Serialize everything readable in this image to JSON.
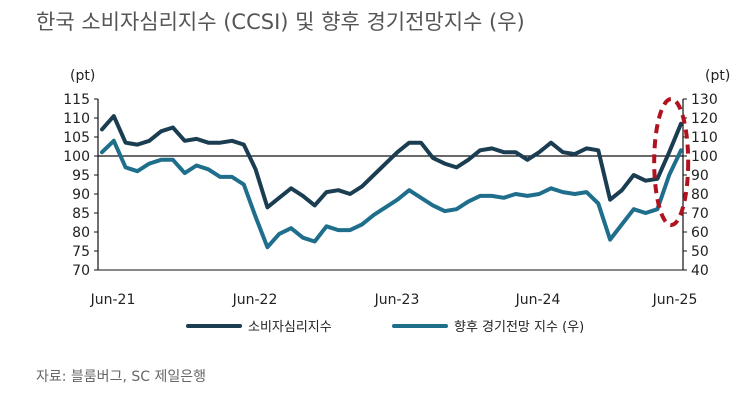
{
  "title": "한국 소비자심리지수 (CCSI) 및 향후 경기전망지수 (우)",
  "source": "자료: 블룸버그, SC 제일은행",
  "chart_data": {
    "type": "line",
    "x_tick_labels": [
      "Jun-21",
      "Jun-22",
      "Jun-23",
      "Jun-24",
      "Jun-25"
    ],
    "y_left": {
      "unit": "(pt)",
      "min": 70,
      "max": 115,
      "ticks": [
        70,
        75,
        80,
        85,
        90,
        95,
        100,
        105,
        110,
        115
      ]
    },
    "y_right": {
      "unit": "(pt)",
      "min": 40,
      "max": 130,
      "ticks": [
        40,
        50,
        60,
        70,
        80,
        90,
        100,
        110,
        120,
        130
      ]
    },
    "reference_line": 100,
    "series": [
      {
        "name": "소비자심리지수",
        "axis": "left",
        "color": "#1a3d52",
        "values": [
          107.0,
          110.5,
          103.5,
          103.0,
          104.0,
          106.5,
          107.5,
          104.0,
          104.5,
          103.5,
          103.5,
          104.0,
          103.0,
          96.5,
          86.5,
          89.0,
          91.5,
          89.5,
          87.0,
          90.5,
          91.0,
          90.0,
          92.0,
          95.0,
          98.0,
          101.0,
          103.5,
          103.5,
          99.5,
          98.0,
          97.0,
          99.0,
          101.5,
          102.0,
          101.0,
          101.0,
          99.0,
          101.0,
          103.5,
          101.0,
          100.5,
          102.0,
          101.5,
          88.5,
          91.0,
          95.0,
          93.5,
          94.0,
          101.0,
          108.5
        ]
      },
      {
        "name": "향후 경기전망 지수 (우)",
        "axis": "right",
        "color": "#1e6e8c",
        "values": [
          102,
          108,
          94,
          92,
          96,
          98,
          98,
          91,
          95,
          93,
          89,
          89,
          85,
          68,
          52,
          59,
          62,
          57,
          55,
          63,
          61,
          61,
          64,
          69,
          73,
          77,
          82,
          78,
          74,
          71,
          72,
          76,
          79,
          79,
          78,
          80,
          79,
          80,
          83,
          81,
          80,
          81,
          75,
          56,
          64,
          72,
          70,
          72,
          90,
          103
        ]
      }
    ],
    "highlight": {
      "shape": "dashed-ellipse",
      "color": "#b0131f",
      "from_index": 47,
      "to_index": 49
    },
    "legend_position": "bottom"
  }
}
